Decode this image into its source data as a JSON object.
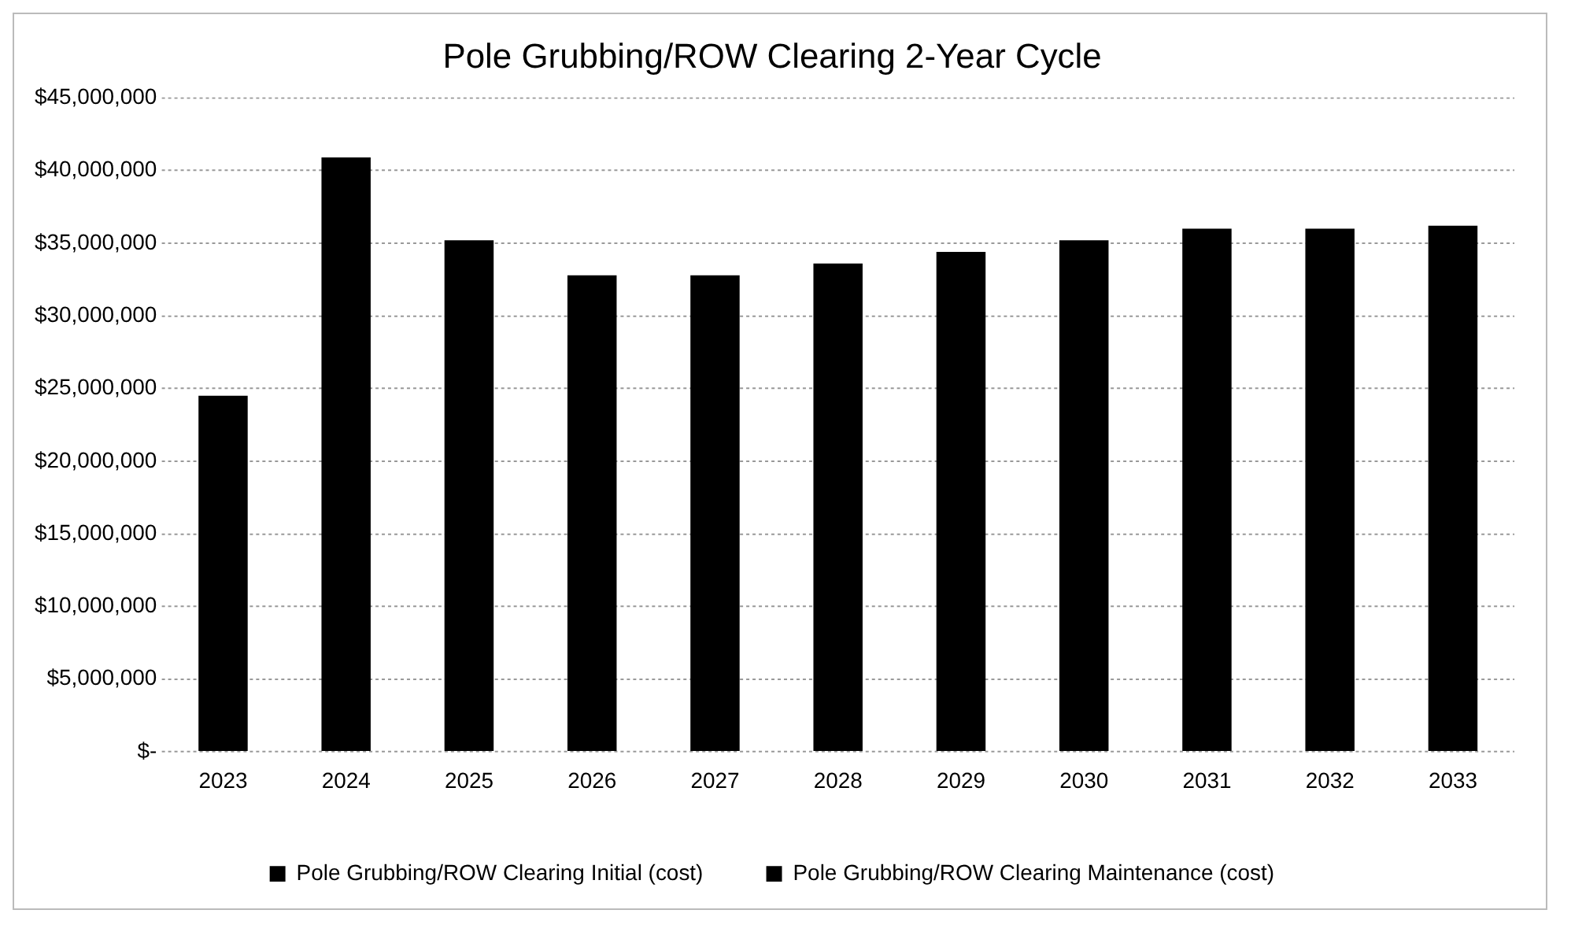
{
  "chart_data": {
    "type": "bar",
    "title": "Pole Grubbing/ROW Clearing 2-Year Cycle",
    "categories": [
      "2023",
      "2024",
      "2025",
      "2026",
      "2027",
      "2028",
      "2029",
      "2030",
      "2031",
      "2032",
      "2033"
    ],
    "stacked": true,
    "series": [
      {
        "name": "Pole Grubbing/ROW Clearing Initial (cost)",
        "color": "#000000",
        "values": [
          24500000,
          40900000,
          null,
          null,
          null,
          null,
          null,
          null,
          null,
          null,
          null
        ]
      },
      {
        "name": "Pole Grubbing/ROW Clearing Maintenance (cost)",
        "color": "#000000",
        "values": [
          null,
          null,
          35200000,
          32800000,
          32800000,
          33600000,
          34400000,
          35200000,
          36000000,
          36000000,
          36200000
        ]
      }
    ],
    "ylim": [
      0,
      45000000
    ],
    "yticks": [
      {
        "value": 0,
        "label": "$-"
      },
      {
        "value": 5000000,
        "label": "$5,000,000"
      },
      {
        "value": 10000000,
        "label": "$10,000,000"
      },
      {
        "value": 15000000,
        "label": "$15,000,000"
      },
      {
        "value": 20000000,
        "label": "$20,000,000"
      },
      {
        "value": 25000000,
        "label": "$25,000,000"
      },
      {
        "value": 30000000,
        "label": "$30,000,000"
      },
      {
        "value": 35000000,
        "label": "$35,000,000"
      },
      {
        "value": 40000000,
        "label": "$40,000,000"
      },
      {
        "value": 45000000,
        "label": "$45,000,000"
      }
    ],
    "grid": "y",
    "legend": "bottom"
  }
}
